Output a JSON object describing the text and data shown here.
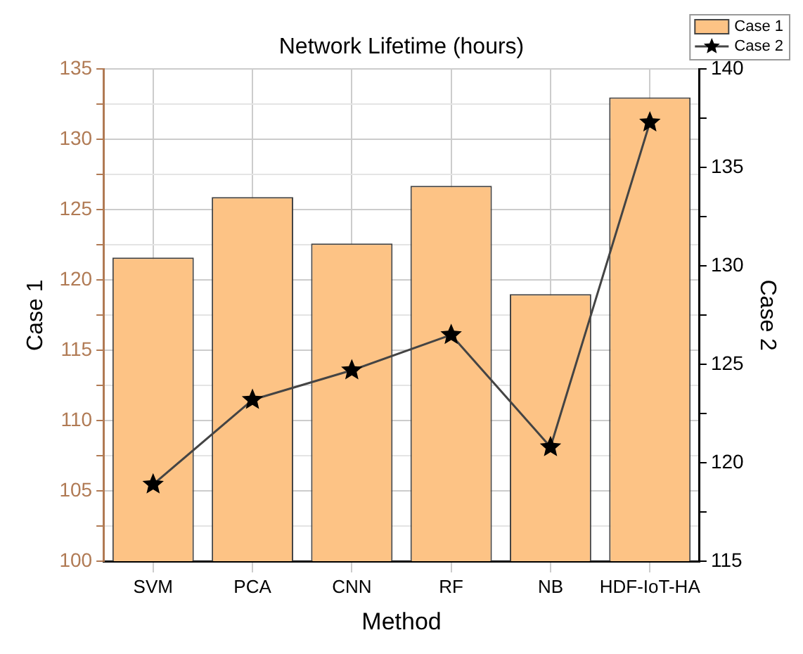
{
  "chart_data": {
    "type": "bar",
    "title": "Network Lifetime (hours)",
    "xlabel": "Method",
    "ylabel": "Case 1",
    "y2label": "Case 2",
    "categories": [
      "SVM",
      "PCA",
      "CNN",
      "RF",
      "NB",
      "HDF-IoT-HA"
    ],
    "series": [
      {
        "name": "Case 1",
        "color": "#fdc385",
        "values": [
          121.6,
          125.9,
          122.6,
          126.7,
          119.0,
          133.0
        ]
      },
      {
        "name": "Case 2",
        "type": "line",
        "axis": "y2",
        "color": "#000000",
        "marker": "star",
        "values": [
          118.9,
          123.2,
          124.7,
          126.5,
          120.8,
          137.3
        ]
      }
    ],
    "ylim": [
      100,
      135
    ],
    "yticks": [
      100,
      {
        "value": 102.5,
        "label": null
      },
      105,
      {
        "value": 107.5,
        "label": null
      },
      110,
      {
        "value": 112.5,
        "label": null
      },
      115,
      {
        "value": 117.5,
        "label": null
      },
      120,
      {
        "value": 122.5,
        "label": null
      },
      125,
      {
        "value": 127.5,
        "label": null
      },
      130,
      {
        "value": 132.5,
        "label": null
      },
      135
    ],
    "y2lim": [
      115,
      140
    ],
    "y2ticks": [
      115,
      {
        "value": 117.5,
        "label": null
      },
      120,
      {
        "value": 122.5,
        "label": null
      },
      125,
      {
        "value": 127.5,
        "label": null
      },
      130,
      {
        "value": 132.5,
        "label": null
      },
      135,
      {
        "value": 137.5,
        "label": null
      },
      140
    ],
    "grid": true,
    "legend": "top right"
  }
}
